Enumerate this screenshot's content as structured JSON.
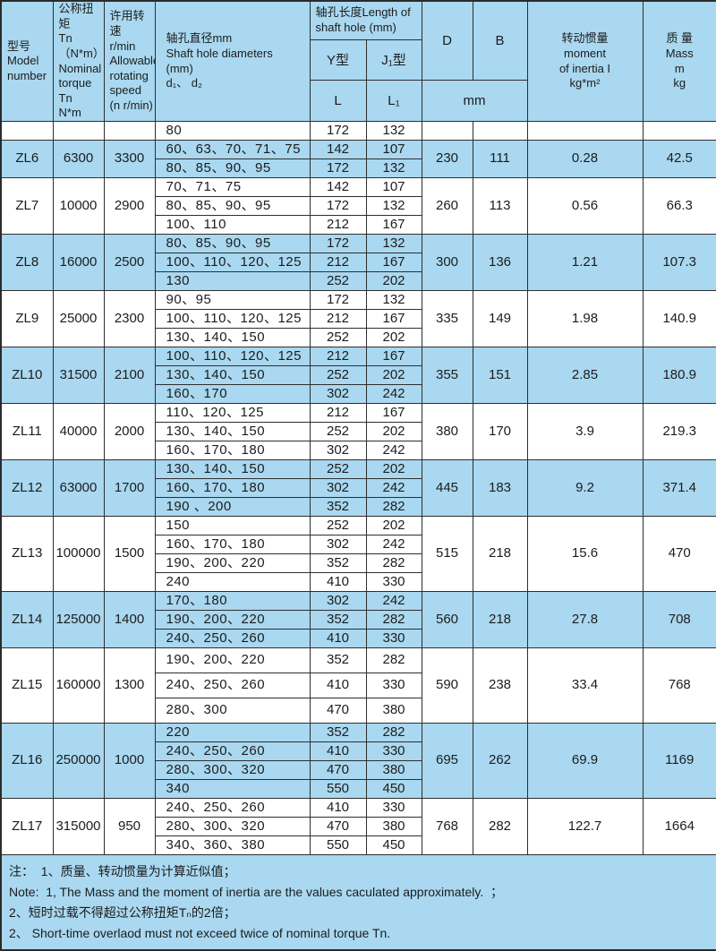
{
  "table_title": "ZL coupling specification table",
  "header": {
    "model": "型号\nModel\nnumber",
    "torque": "公称扭矩\nTn（N*m）\nNominal\ntorque Tn\nN*m",
    "speed": "许用转速\nr/min\nAllowable\nrotating\nspeed\n(n r/min)",
    "diameters": "轴孔直径mm\nShaft hole diameters\n(mm)\nd₁、 d₂",
    "hole_length": "轴孔长度Length of\nshaft hole (mm)",
    "y_type": "Y型",
    "j_type": "J₁型",
    "L": "L",
    "L1": "L₁",
    "D": "D",
    "B": "B",
    "mm": "mm",
    "inertia": "转动惯量\nmoment\nof inertia I\nkg*m²",
    "mass": "质 量\nMass\nm\nkg"
  },
  "models": [
    {
      "model": "",
      "torque": "",
      "speed": "",
      "D": "",
      "B": "",
      "inertia": "",
      "mass": "",
      "blue": false,
      "tall": false,
      "rows": [
        {
          "d": "80",
          "L": "172",
          "L1": "132"
        }
      ]
    },
    {
      "model": "ZL6",
      "torque": "6300",
      "speed": "3300",
      "D": "230",
      "B": "111",
      "inertia": "0.28",
      "mass": "42.5",
      "blue": true,
      "tall": false,
      "rows": [
        {
          "d": "60、63、70、71、75",
          "L": "142",
          "L1": "107"
        },
        {
          "d": "80、85、90、95",
          "L": "172",
          "L1": "132"
        }
      ]
    },
    {
      "model": "ZL7",
      "torque": "10000",
      "speed": "2900",
      "D": "260",
      "B": "113",
      "inertia": "0.56",
      "mass": "66.3",
      "blue": false,
      "tall": false,
      "rows": [
        {
          "d": "70、71、75",
          "L": "142",
          "L1": "107"
        },
        {
          "d": "80、85、90、95",
          "L": "172",
          "L1": "132"
        },
        {
          "d": "100、110",
          "L": "212",
          "L1": "167"
        }
      ]
    },
    {
      "model": "ZL8",
      "torque": "16000",
      "speed": "2500",
      "D": "300",
      "B": "136",
      "inertia": "1.21",
      "mass": "107.3",
      "blue": true,
      "tall": false,
      "rows": [
        {
          "d": "80、85、90、95",
          "L": "172",
          "L1": "132"
        },
        {
          "d": "100、110、120、125",
          "L": "212",
          "L1": "167"
        },
        {
          "d": "130",
          "L": "252",
          "L1": "202"
        }
      ]
    },
    {
      "model": "ZL9",
      "torque": "25000",
      "speed": "2300",
      "D": "335",
      "B": "149",
      "inertia": "1.98",
      "mass": "140.9",
      "blue": false,
      "tall": false,
      "rows": [
        {
          "d": "90、95",
          "L": "172",
          "L1": "132"
        },
        {
          "d": "100、110、120、125",
          "L": "212",
          "L1": "167"
        },
        {
          "d": "130、140、150",
          "L": "252",
          "L1": "202"
        }
      ]
    },
    {
      "model": "ZL10",
      "torque": "31500",
      "speed": "2100",
      "D": "355",
      "B": "151",
      "inertia": "2.85",
      "mass": "180.9",
      "blue": true,
      "tall": false,
      "rows": [
        {
          "d": "100、110、120、125",
          "L": "212",
          "L1": "167"
        },
        {
          "d": "130、140、150",
          "L": "252",
          "L1": "202"
        },
        {
          "d": "160、170",
          "L": "302",
          "L1": "242"
        }
      ]
    },
    {
      "model": "ZL11",
      "torque": "40000",
      "speed": "2000",
      "D": "380",
      "B": "170",
      "inertia": "3.9",
      "mass": "219.3",
      "blue": false,
      "tall": false,
      "rows": [
        {
          "d": "110、120、125",
          "L": "212",
          "L1": "167"
        },
        {
          "d": "130、140、150",
          "L": "252",
          "L1": "202"
        },
        {
          "d": "160、170、180",
          "L": "302",
          "L1": "242"
        }
      ]
    },
    {
      "model": "ZL12",
      "torque": "63000",
      "speed": "1700",
      "D": "445",
      "B": "183",
      "inertia": "9.2",
      "mass": "371.4",
      "blue": true,
      "tall": false,
      "rows": [
        {
          "d": "130、140、150",
          "L": "252",
          "L1": "202"
        },
        {
          "d": "160、170、180",
          "L": "302",
          "L1": "242"
        },
        {
          "d": "190 、200",
          "L": "352",
          "L1": "282"
        }
      ]
    },
    {
      "model": "ZL13",
      "torque": "100000",
      "speed": "1500",
      "D": "515",
      "B": "218",
      "inertia": "15.6",
      "mass": "470",
      "blue": false,
      "tall": false,
      "rows": [
        {
          "d": "150",
          "L": "252",
          "L1": "202"
        },
        {
          "d": "160、170、180",
          "L": "302",
          "L1": "242"
        },
        {
          "d": "190、200、220",
          "L": "352",
          "L1": "282"
        },
        {
          "d": "240",
          "L": "410",
          "L1": "330"
        }
      ]
    },
    {
      "model": "ZL14",
      "torque": "125000",
      "speed": "1400",
      "D": "560",
      "B": "218",
      "inertia": "27.8",
      "mass": "708",
      "blue": true,
      "tall": false,
      "rows": [
        {
          "d": "170、180",
          "L": "302",
          "L1": "242"
        },
        {
          "d": "190、200、220",
          "L": "352",
          "L1": "282"
        },
        {
          "d": "240、250、260",
          "L": "410",
          "L1": "330"
        }
      ]
    },
    {
      "model": "ZL15",
      "torque": "160000",
      "speed": "1300",
      "D": "590",
      "B": "238",
      "inertia": "33.4",
      "mass": "768",
      "blue": false,
      "tall": true,
      "rows": [
        {
          "d": "190、200、220",
          "L": "352",
          "L1": "282"
        },
        {
          "d": "240、250、260",
          "L": "410",
          "L1": "330"
        },
        {
          "d": "280、300",
          "L": "470",
          "L1": "380"
        }
      ]
    },
    {
      "model": "ZL16",
      "torque": "250000",
      "speed": "1000",
      "D": "695",
      "B": "262",
      "inertia": "69.9",
      "mass": "1169",
      "blue": true,
      "tall": false,
      "rows": [
        {
          "d": "220",
          "L": "352",
          "L1": "282"
        },
        {
          "d": "240、250、260",
          "L": "410",
          "L1": "330"
        },
        {
          "d": "280、300、320",
          "L": "470",
          "L1": "380"
        },
        {
          "d": "340",
          "L": "550",
          "L1": "450"
        }
      ]
    },
    {
      "model": "ZL17",
      "torque": "315000",
      "speed": "950",
      "D": "768",
      "B": "282",
      "inertia": "122.7",
      "mass": "1664",
      "blue": false,
      "tall": false,
      "rows": [
        {
          "d": "240、250、260",
          "L": "410",
          "L1": "330"
        },
        {
          "d": "280、300、320",
          "L": "470",
          "L1": "380"
        },
        {
          "d": "340、360、380",
          "L": "550",
          "L1": "450"
        }
      ]
    }
  ],
  "notes": [
    "注：  1、质量、转动惯量为计算近似值；",
    "Note:  1, The Mass and the moment of inertia are the values caculated approximately.  ；",
    "2、短时过载不得超过公称扭矩Tₙ的2倍；",
    "2、 Short-time overlaod must not exceed twice of nominal torque Tn."
  ],
  "colors": {
    "row_blue": "#a9d8f0",
    "row_white": "#ffffff",
    "border": "#2e2e2e",
    "text": "#1c1c1c"
  }
}
